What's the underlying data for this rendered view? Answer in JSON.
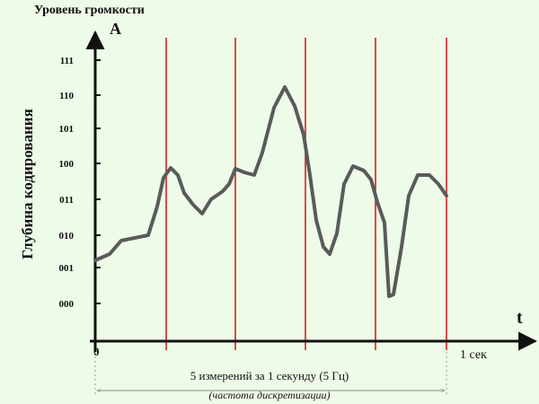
{
  "header": {
    "title": "Уровень громкости"
  },
  "axes": {
    "y_axis_letter": "A",
    "x_axis_letter": "t",
    "origin": "0",
    "x_end_label": "1 сек",
    "y_axis_title": "Глубина кодирования",
    "levels": [
      "111",
      "110",
      "101",
      "100",
      "011",
      "010",
      "001",
      "000"
    ]
  },
  "footer": {
    "caption": "5 измерений за 1 секунду (5 Гц)",
    "subcaption": "(частота дискретизации)"
  }
}
